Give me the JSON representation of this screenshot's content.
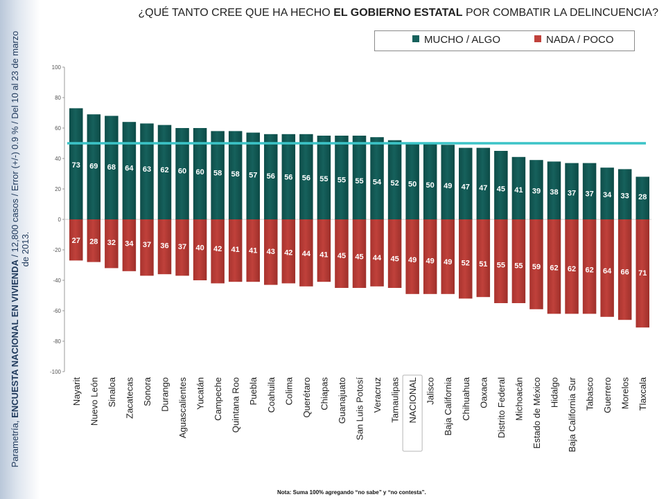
{
  "sidebar": {
    "prefix": "Parametría, ",
    "survey": "ENCUESTA NACIONAL EN VIVIENDA",
    "details_line1": " / 12,800 casos / Error (+/-) 0.9 % / Del 10 al 23 de marzo",
    "details_line2": "de 2013."
  },
  "title": {
    "part1": "¿QUÉ TANTO CREE QUE HA HECHO ",
    "bold": "EL GOBIERNO ESTATAL",
    "part2": " POR COMBATIR LA DELINCUENCIA?"
  },
  "legend": {
    "positive": "MUCHO / ALGO",
    "negative": "NADA / POCO"
  },
  "footnote": "Nota: Suma 100% agregando “no sabe” y “no contesta”.",
  "colors": {
    "positive": "#16615c",
    "negative": "#c0413b",
    "reference_line": "#3cc4c7"
  },
  "chart_data": {
    "type": "bar",
    "categories": [
      "Nayarit",
      "Nuevo León",
      "Sinaloa",
      "Zacatecas",
      "Sonora",
      "Durango",
      "Aguascalientes",
      "Yucatán",
      "Campeche",
      "Quintana Roo",
      "Puebla",
      "Coahuila",
      "Colima",
      "Querétaro",
      "Chiapas",
      "Guanajuato",
      "San Luis Potosí",
      "Veracruz",
      "Tamaulipas",
      "NACIONAL",
      "Jalisco",
      "Baja California",
      "Chihuahua",
      "Oaxaca",
      "Distrito Federal",
      "Michoacán",
      "Estado de México",
      "Hidalgo",
      "Baja California Sur",
      "Tabasco",
      "Guerrero",
      "Morelos",
      "Tlaxcala"
    ],
    "series": [
      {
        "name": "MUCHO / ALGO",
        "values": [
          73,
          69,
          68,
          64,
          63,
          62,
          60,
          60,
          58,
          58,
          57,
          56,
          56,
          56,
          55,
          55,
          55,
          54,
          52,
          50,
          50,
          49,
          47,
          47,
          45,
          41,
          39,
          38,
          37,
          37,
          34,
          33,
          28
        ]
      },
      {
        "name": "NADA / POCO",
        "values": [
          27,
          28,
          32,
          34,
          37,
          36,
          37,
          40,
          42,
          41,
          41,
          43,
          42,
          44,
          41,
          45,
          45,
          44,
          45,
          49,
          49,
          49,
          52,
          51,
          55,
          55,
          59,
          62,
          62,
          62,
          64,
          66,
          71
        ]
      }
    ],
    "ylim": [
      -100,
      100
    ],
    "yticks": [
      100,
      80,
      60,
      40,
      20,
      0,
      -20,
      -40,
      -60,
      -80,
      -100
    ],
    "reference_line": 50,
    "highlight_category": "NACIONAL",
    "legend_position": "top-right"
  }
}
